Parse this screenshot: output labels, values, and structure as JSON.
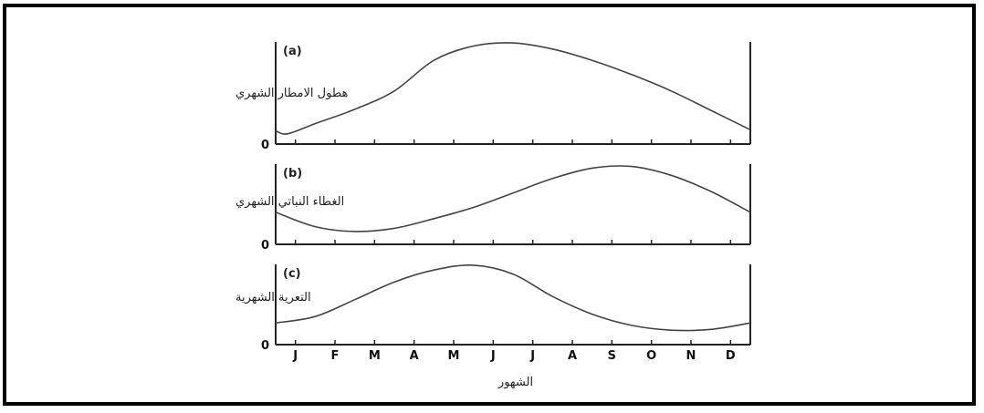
{
  "chart_data": {
    "type": "line",
    "x_tick_labels": [
      "J",
      "F",
      "M",
      "A",
      "M",
      "J",
      "J",
      "A",
      "S",
      "O",
      "N",
      "D"
    ],
    "xlabel": "الشهور",
    "zero_label": "0",
    "line_color": "#444444",
    "panels": [
      {
        "label": "(a)",
        "ylabel": "هطول الامطار الشهري",
        "x": [
          0,
          0.3,
          1,
          2,
          3,
          4,
          5,
          6,
          7,
          8,
          9,
          10,
          11,
          12
        ],
        "values": [
          0.13,
          0.1,
          0.2,
          0.34,
          0.52,
          0.82,
          0.96,
          0.99,
          0.93,
          0.82,
          0.68,
          0.52,
          0.33,
          0.14
        ]
      },
      {
        "label": "(b)",
        "ylabel": "الغطاء النباتي الشهري",
        "x": [
          0,
          1,
          2,
          3,
          4,
          5,
          6,
          7,
          8,
          9,
          10,
          11,
          12
        ],
        "values": [
          0.4,
          0.22,
          0.16,
          0.2,
          0.32,
          0.46,
          0.64,
          0.82,
          0.95,
          0.97,
          0.86,
          0.66,
          0.4
        ]
      },
      {
        "label": "(c)",
        "ylabel": "التعرية الشهرية",
        "x": [
          0,
          1,
          2,
          3,
          4,
          5,
          6,
          7,
          8,
          9,
          10,
          11,
          12
        ],
        "values": [
          0.27,
          0.35,
          0.56,
          0.78,
          0.93,
          0.99,
          0.88,
          0.6,
          0.38,
          0.24,
          0.18,
          0.19,
          0.27
        ]
      }
    ]
  }
}
